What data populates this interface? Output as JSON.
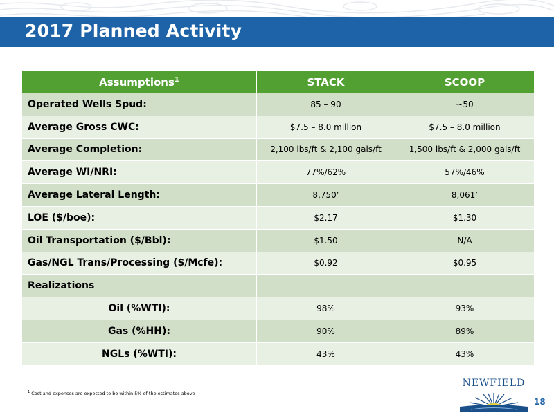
{
  "title": "2017 Planned Activity",
  "table": {
    "header": {
      "label": "Assumptions",
      "label_sup": "1",
      "col1": "STACK",
      "col2": "SCOOP"
    },
    "rows": [
      {
        "label": "Operated Wells Spud:",
        "stack": "85 – 90",
        "scoop": "~50"
      },
      {
        "label": "Average Gross CWC:",
        "stack": "$7.5 – 8.0 million",
        "scoop": "$7.5 – 8.0 million"
      },
      {
        "label": "Average Completion:",
        "stack": "2,100 lbs/ft & 2,100 gals/ft",
        "scoop": "1,500 lbs/ft & 2,000 gals/ft"
      },
      {
        "label": "Average WI/NRI:",
        "stack": "77%/62%",
        "scoop": "57%/46%"
      },
      {
        "label": "Average Lateral Length:",
        "stack": "8,750’",
        "scoop": "8,061’"
      },
      {
        "label": "LOE ($/boe):",
        "stack": "$2.17",
        "scoop": "$1.30"
      },
      {
        "label": "Oil Transportation ($/Bbl):",
        "stack": "$1.50",
        "scoop": "N/A"
      },
      {
        "label": "Gas/NGL Trans/Processing ($/Mcfe):",
        "stack": "$0.92",
        "scoop": "$0.95"
      },
      {
        "label": "Realizations",
        "stack": "",
        "scoop": ""
      },
      {
        "label": "Oil (%WTI):",
        "stack": "98%",
        "scoop": "93%"
      },
      {
        "label": "Gas (%HH):",
        "stack": "90%",
        "scoop": "89%"
      },
      {
        "label": "NGLs (%WTI):",
        "stack": "43%",
        "scoop": "43%"
      }
    ]
  },
  "footnote": {
    "marker": "1",
    "text": "Cost and expenses are expected to be within 5% of the estimates above"
  },
  "logo": {
    "text": "NEWFIELD"
  },
  "page_number": "18",
  "colors": {
    "title_bar": "#1e63a8",
    "header_green": "#52a032",
    "row_dark": "#d2dfc8",
    "row_light": "#e8efe3",
    "logo_blue": "#1b4f8a"
  },
  "icons": [
    "topographic-pattern",
    "newfield-sunrise-logo"
  ]
}
